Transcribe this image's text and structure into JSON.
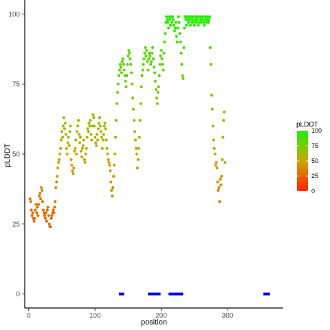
{
  "chart_data": {
    "type": "scatter",
    "xlabel": "position",
    "ylabel": "pLDDT",
    "xlim": [
      -6,
      384
    ],
    "ylim": [
      -5,
      105
    ],
    "xticks": [
      0,
      100,
      200,
      300
    ],
    "yticks": [
      0,
      25,
      50,
      75,
      100
    ],
    "grid": false,
    "legend": {
      "title": "pLDDT",
      "placement": "right",
      "ticks": [
        0,
        25,
        50,
        75,
        100
      ]
    },
    "colors": {
      "low": "#ff2200",
      "mid": "#c8a800",
      "high": "#22ee00",
      "domain": "#0000ee"
    },
    "points": [
      [
        2,
        34
      ],
      [
        3,
        33
      ],
      [
        4,
        30
      ],
      [
        5,
        28
      ],
      [
        6,
        29
      ],
      [
        7,
        27
      ],
      [
        8,
        26
      ],
      [
        9,
        27
      ],
      [
        10,
        30
      ],
      [
        11,
        32
      ],
      [
        12,
        29
      ],
      [
        13,
        31
      ],
      [
        14,
        28
      ],
      [
        15,
        32
      ],
      [
        16,
        35
      ],
      [
        17,
        36
      ],
      [
        18,
        34
      ],
      [
        19,
        38
      ],
      [
        20,
        37
      ],
      [
        21,
        33
      ],
      [
        22,
        30
      ],
      [
        23,
        29
      ],
      [
        24,
        28
      ],
      [
        25,
        27
      ],
      [
        26,
        29
      ],
      [
        27,
        26
      ],
      [
        28,
        30
      ],
      [
        29,
        31
      ],
      [
        30,
        28
      ],
      [
        31,
        25
      ],
      [
        32,
        24
      ],
      [
        33,
        24
      ],
      [
        34,
        27
      ],
      [
        35,
        28
      ],
      [
        36,
        29
      ],
      [
        37,
        30
      ],
      [
        38,
        29
      ],
      [
        39,
        31
      ],
      [
        40,
        33
      ],
      [
        41,
        38
      ],
      [
        42,
        40
      ],
      [
        43,
        42
      ],
      [
        44,
        45
      ],
      [
        45,
        47
      ],
      [
        46,
        48
      ],
      [
        47,
        50
      ],
      [
        48,
        52
      ],
      [
        49,
        55
      ],
      [
        50,
        58
      ],
      [
        51,
        56
      ],
      [
        52,
        60
      ],
      [
        53,
        63
      ],
      [
        54,
        59
      ],
      [
        55,
        61
      ],
      [
        56,
        57
      ],
      [
        57,
        52
      ],
      [
        58,
        50
      ],
      [
        59,
        54
      ],
      [
        60,
        56
      ],
      [
        61,
        53
      ],
      [
        62,
        58
      ],
      [
        63,
        60
      ],
      [
        64,
        48
      ],
      [
        65,
        46
      ],
      [
        66,
        44
      ],
      [
        67,
        43
      ],
      [
        68,
        45
      ],
      [
        69,
        51
      ],
      [
        70,
        52
      ],
      [
        71,
        55
      ],
      [
        72,
        50
      ],
      [
        73,
        58
      ],
      [
        74,
        60
      ],
      [
        75,
        62
      ],
      [
        76,
        57
      ],
      [
        77,
        54
      ],
      [
        78,
        56
      ],
      [
        79,
        51
      ],
      [
        80,
        49
      ],
      [
        81,
        52
      ],
      [
        82,
        53
      ],
      [
        83,
        55
      ],
      [
        84,
        48
      ],
      [
        85,
        47
      ],
      [
        86,
        50
      ],
      [
        87,
        52
      ],
      [
        88,
        56
      ],
      [
        89,
        59
      ],
      [
        90,
        58
      ],
      [
        91,
        61
      ],
      [
        92,
        60
      ],
      [
        93,
        62
      ],
      [
        94,
        57
      ],
      [
        95,
        55
      ],
      [
        96,
        60
      ],
      [
        97,
        64
      ],
      [
        98,
        63
      ],
      [
        99,
        60
      ],
      [
        100,
        56
      ],
      [
        101,
        54
      ],
      [
        102,
        53
      ],
      [
        103,
        57
      ],
      [
        104,
        55
      ],
      [
        105,
        59
      ],
      [
        106,
        61
      ],
      [
        107,
        63
      ],
      [
        108,
        60
      ],
      [
        109,
        58
      ],
      [
        110,
        56
      ],
      [
        111,
        52
      ],
      [
        112,
        55
      ],
      [
        113,
        57
      ],
      [
        114,
        60
      ],
      [
        115,
        61
      ],
      [
        116,
        59
      ],
      [
        117,
        55
      ],
      [
        118,
        52
      ],
      [
        119,
        50
      ],
      [
        120,
        48
      ],
      [
        121,
        47
      ],
      [
        122,
        46
      ],
      [
        123,
        44
      ],
      [
        124,
        40
      ],
      [
        125,
        37
      ],
      [
        126,
        35
      ],
      [
        127,
        38
      ],
      [
        128,
        42
      ],
      [
        129,
        46
      ],
      [
        130,
        50
      ],
      [
        131,
        56
      ],
      [
        132,
        62
      ],
      [
        133,
        68
      ],
      [
        134,
        72
      ],
      [
        135,
        75
      ],
      [
        136,
        78
      ],
      [
        137,
        80
      ],
      [
        138,
        82
      ],
      [
        139,
        81
      ],
      [
        140,
        79
      ],
      [
        141,
        83
      ],
      [
        142,
        84
      ],
      [
        143,
        82
      ],
      [
        144,
        80
      ],
      [
        145,
        78
      ],
      [
        146,
        76
      ],
      [
        147,
        74
      ],
      [
        148,
        78
      ],
      [
        149,
        82
      ],
      [
        150,
        85
      ],
      [
        151,
        87
      ],
      [
        152,
        86
      ],
      [
        153,
        84
      ],
      [
        154,
        82
      ],
      [
        155,
        79
      ],
      [
        156,
        75
      ],
      [
        157,
        70
      ],
      [
        158,
        66
      ],
      [
        159,
        62
      ],
      [
        160,
        58
      ],
      [
        161,
        55
      ],
      [
        162,
        52
      ],
      [
        163,
        50
      ],
      [
        164,
        45
      ],
      [
        165,
        48
      ],
      [
        166,
        52
      ],
      [
        167,
        56
      ],
      [
        168,
        62
      ],
      [
        169,
        68
      ],
      [
        170,
        74
      ],
      [
        171,
        78
      ],
      [
        172,
        80
      ],
      [
        173,
        82
      ],
      [
        174,
        84
      ],
      [
        175,
        86
      ],
      [
        176,
        88
      ],
      [
        177,
        85
      ],
      [
        178,
        87
      ],
      [
        179,
        83
      ],
      [
        180,
        80
      ],
      [
        181,
        84
      ],
      [
        182,
        86
      ],
      [
        183,
        85
      ],
      [
        184,
        82
      ],
      [
        185,
        83
      ],
      [
        186,
        86
      ],
      [
        187,
        88
      ],
      [
        188,
        84
      ],
      [
        189,
        81
      ],
      [
        190,
        79
      ],
      [
        191,
        76
      ],
      [
        192,
        73
      ],
      [
        193,
        70
      ],
      [
        194,
        68
      ],
      [
        195,
        72
      ],
      [
        196,
        74
      ],
      [
        197,
        78
      ],
      [
        198,
        82
      ],
      [
        199,
        85
      ],
      [
        200,
        87
      ],
      [
        201,
        84
      ],
      [
        202,
        82
      ],
      [
        203,
        80
      ],
      [
        204,
        86
      ],
      [
        205,
        90
      ],
      [
        206,
        93
      ],
      [
        207,
        97
      ],
      [
        208,
        99
      ],
      [
        209,
        98
      ],
      [
        210,
        97
      ],
      [
        211,
        95
      ],
      [
        212,
        99
      ],
      [
        213,
        98
      ],
      [
        214,
        96
      ],
      [
        215,
        99
      ],
      [
        216,
        97
      ],
      [
        217,
        99
      ],
      [
        218,
        98
      ],
      [
        219,
        96
      ],
      [
        220,
        94
      ],
      [
        221,
        95
      ],
      [
        222,
        97
      ],
      [
        223,
        92
      ],
      [
        224,
        90
      ],
      [
        225,
        95
      ],
      [
        226,
        99
      ],
      [
        227,
        97
      ],
      [
        228,
        93
      ],
      [
        229,
        90
      ],
      [
        230,
        86
      ],
      [
        231,
        82
      ],
      [
        232,
        78
      ],
      [
        233,
        77
      ],
      [
        234,
        88
      ],
      [
        235,
        95
      ],
      [
        236,
        99
      ],
      [
        237,
        98
      ],
      [
        238,
        96
      ],
      [
        239,
        99
      ],
      [
        240,
        98
      ],
      [
        241,
        97
      ],
      [
        242,
        99
      ],
      [
        243,
        98
      ],
      [
        244,
        96
      ],
      [
        245,
        99
      ],
      [
        246,
        97
      ],
      [
        247,
        98
      ],
      [
        248,
        99
      ],
      [
        249,
        97
      ],
      [
        250,
        96
      ],
      [
        251,
        98
      ],
      [
        252,
        99
      ],
      [
        253,
        97
      ],
      [
        254,
        98
      ],
      [
        255,
        99
      ],
      [
        256,
        96
      ],
      [
        257,
        97
      ],
      [
        258,
        99
      ],
      [
        259,
        98
      ],
      [
        260,
        97
      ],
      [
        261,
        99
      ],
      [
        262,
        98
      ],
      [
        263,
        99
      ],
      [
        264,
        97
      ],
      [
        265,
        96
      ],
      [
        266,
        98
      ],
      [
        267,
        99
      ],
      [
        268,
        97
      ],
      [
        269,
        98
      ],
      [
        270,
        99
      ],
      [
        271,
        97
      ],
      [
        272,
        98
      ],
      [
        273,
        99
      ],
      [
        274,
        88
      ],
      [
        275,
        82
      ],
      [
        276,
        71
      ],
      [
        277,
        66
      ],
      [
        278,
        60
      ],
      [
        279,
        55
      ],
      [
        280,
        52
      ],
      [
        281,
        50
      ],
      [
        282,
        46
      ],
      [
        283,
        47
      ],
      [
        284,
        45
      ],
      [
        285,
        40
      ],
      [
        286,
        37
      ],
      [
        287,
        38
      ],
      [
        288,
        33
      ],
      [
        289,
        41
      ],
      [
        290,
        39
      ],
      [
        291,
        42
      ],
      [
        292,
        48
      ],
      [
        293,
        56
      ],
      [
        294,
        62
      ],
      [
        295,
        65
      ],
      [
        296,
        47
      ]
    ],
    "domains": [
      {
        "start": 136,
        "end": 144,
        "y": 0
      },
      {
        "start": 180,
        "end": 199,
        "y": 0
      },
      {
        "start": 211,
        "end": 233,
        "y": 0
      },
      {
        "start": 354,
        "end": 364,
        "y": 0
      }
    ]
  }
}
